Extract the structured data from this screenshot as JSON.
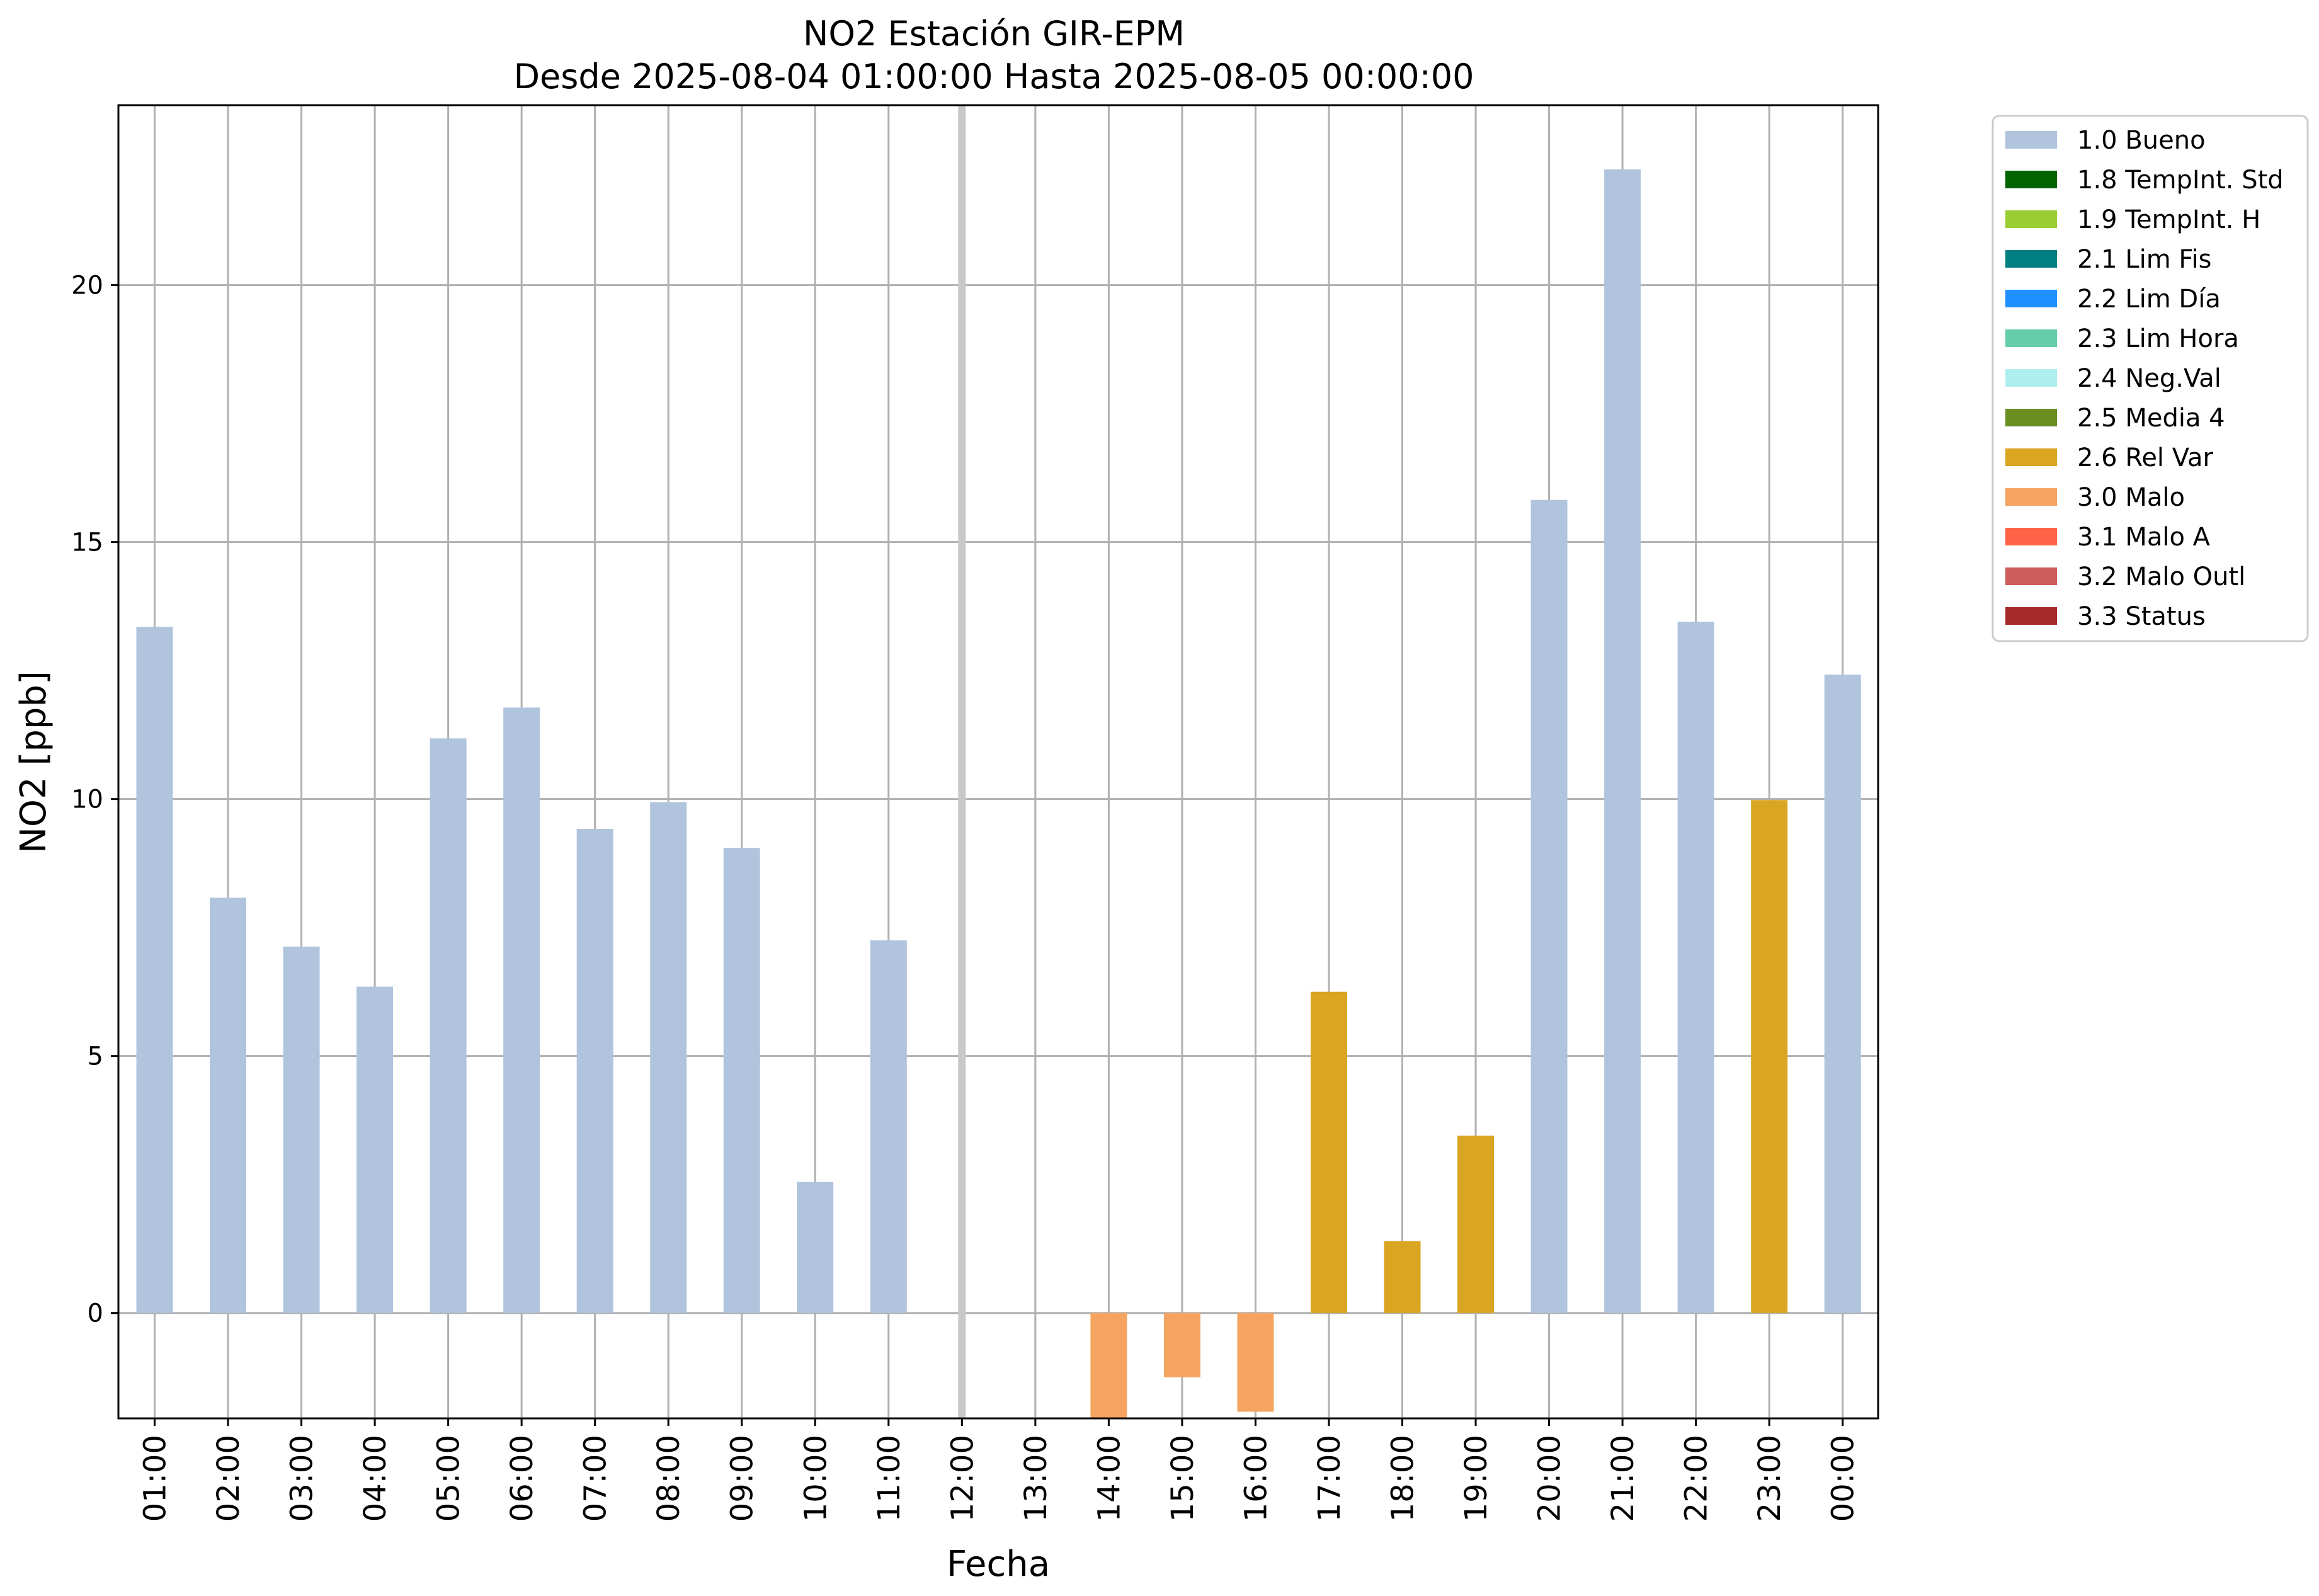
{
  "chart_data": {
    "type": "bar",
    "title_line1": "NO2 Estación GIR-EPM",
    "title_line2": "Desde 2025-08-04 01:00:00 Hasta 2025-08-05 00:00:00",
    "xlabel": "Fecha",
    "ylabel": "NO2 [ppb]",
    "ylim": [
      -2.05,
      23.5
    ],
    "yticks": [
      0,
      5,
      10,
      15,
      20
    ],
    "grid": true,
    "legend_placement": "outside-top-right",
    "categories": [
      "01:00",
      "02:00",
      "03:00",
      "04:00",
      "05:00",
      "06:00",
      "07:00",
      "08:00",
      "09:00",
      "10:00",
      "11:00",
      "12:00",
      "13:00",
      "14:00",
      "15:00",
      "16:00",
      "17:00",
      "18:00",
      "19:00",
      "20:00",
      "21:00",
      "22:00",
      "23:00",
      "00:00"
    ],
    "bars": [
      {
        "category": "01:00",
        "value": 13.35,
        "flag": "1.0 Bueno"
      },
      {
        "category": "02:00",
        "value": 8.08,
        "flag": "1.0 Bueno"
      },
      {
        "category": "03:00",
        "value": 7.13,
        "flag": "1.0 Bueno"
      },
      {
        "category": "04:00",
        "value": 6.35,
        "flag": "1.0 Bueno"
      },
      {
        "category": "05:00",
        "value": 11.18,
        "flag": "1.0 Bueno"
      },
      {
        "category": "06:00",
        "value": 11.78,
        "flag": "1.0 Bueno"
      },
      {
        "category": "07:00",
        "value": 9.42,
        "flag": "1.0 Bueno"
      },
      {
        "category": "08:00",
        "value": 9.94,
        "flag": "1.0 Bueno"
      },
      {
        "category": "09:00",
        "value": 9.05,
        "flag": "1.0 Bueno"
      },
      {
        "category": "10:00",
        "value": 2.55,
        "flag": "1.0 Bueno"
      },
      {
        "category": "11:00",
        "value": 7.25,
        "flag": "1.0 Bueno"
      },
      {
        "category": "14:00",
        "value": -2.05,
        "flag": "3.0 Malo"
      },
      {
        "category": "15:00",
        "value": -1.25,
        "flag": "3.0 Malo"
      },
      {
        "category": "16:00",
        "value": -1.92,
        "flag": "3.0 Malo"
      },
      {
        "category": "17:00",
        "value": 6.25,
        "flag": "2.6 Rel Var"
      },
      {
        "category": "18:00",
        "value": 1.4,
        "flag": "2.6 Rel Var"
      },
      {
        "category": "19:00",
        "value": 3.45,
        "flag": "2.6 Rel Var"
      },
      {
        "category": "20:00",
        "value": 15.82,
        "flag": "1.0 Bueno"
      },
      {
        "category": "21:00",
        "value": 22.25,
        "flag": "1.0 Bueno"
      },
      {
        "category": "22:00",
        "value": 13.45,
        "flag": "1.0 Bueno"
      },
      {
        "category": "23:00",
        "value": 9.98,
        "flag": "2.6 Rel Var"
      },
      {
        "category": "00:00",
        "value": 12.42,
        "flag": "1.0 Bueno"
      }
    ],
    "marked_category": "12:00",
    "legend": [
      {
        "label": "1.0 Bueno",
        "color": "#b0c4de"
      },
      {
        "label": "1.8 TempInt. Std",
        "color": "#006400"
      },
      {
        "label": "1.9 TempInt. H",
        "color": "#9acd32"
      },
      {
        "label": "2.1 Lim Fis",
        "color": "#008080"
      },
      {
        "label": "2.2 Lim Día",
        "color": "#1e90ff"
      },
      {
        "label": "2.3 Lim Hora",
        "color": "#66cdaa"
      },
      {
        "label": "2.4 Neg.Val",
        "color": "#afeeee"
      },
      {
        "label": "2.5 Media 4",
        "color": "#6b8e23"
      },
      {
        "label": "2.6 Rel Var",
        "color": "#daa520"
      },
      {
        "label": "3.0 Malo",
        "color": "#f4a460"
      },
      {
        "label": "3.1 Malo A",
        "color": "#ff6347"
      },
      {
        "label": "3.2 Malo Outl",
        "color": "#cd5c5c"
      },
      {
        "label": "3.3 Status",
        "color": "#a52a2a"
      }
    ],
    "colors": {
      "grid": "#b0b0b0",
      "marker_line": "#c8c8c8",
      "axes": "#000000"
    }
  }
}
